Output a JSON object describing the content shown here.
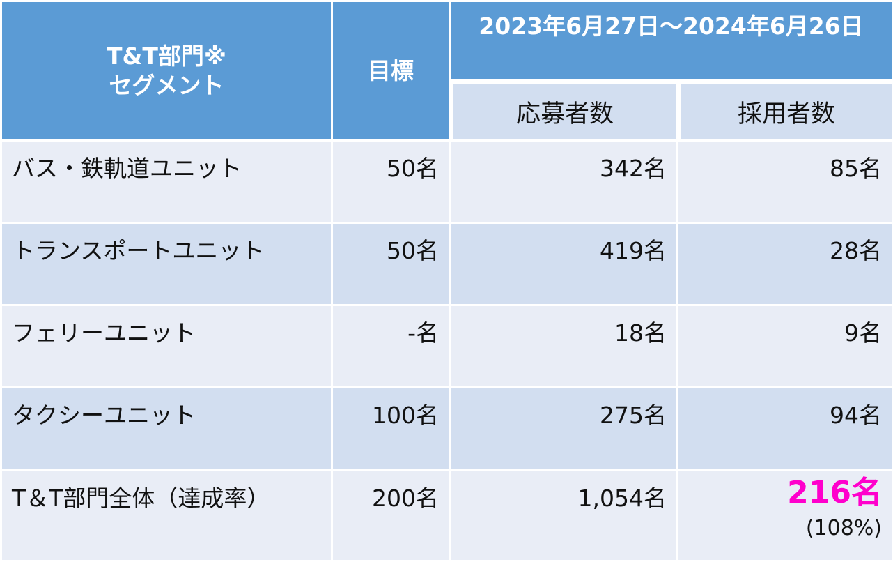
{
  "header": {
    "segment_label_line1": "T&T部門※",
    "segment_label_line2": "セグメント",
    "target_label": "目標",
    "period_label": "2023年6月27日～2024年6月26日",
    "applicants_label": "応募者数",
    "hires_label": "採用者数"
  },
  "rows": [
    {
      "segment": "バス・鉄軌道ユニット",
      "target": "50名",
      "applicants": "342名",
      "hires": "85名"
    },
    {
      "segment": "トランスポートユニット",
      "target": "50名",
      "applicants": "419名",
      "hires": "28名"
    },
    {
      "segment": "フェリーユニット",
      "target": "-名",
      "applicants": "18名",
      "hires": "9名"
    },
    {
      "segment": "タクシーユニット",
      "target": "100名",
      "applicants": "275名",
      "hires": "94名"
    }
  ],
  "total": {
    "segment": "T＆T部門全体（達成率）",
    "target": "200名",
    "applicants": "1,054名",
    "hires": "216名",
    "achievement_rate": "(108%)"
  },
  "colors": {
    "header_blue": "#5b9bd5",
    "row_light": "#e9edf6",
    "row_dark": "#d2def0",
    "highlight_magenta": "#ff00cc"
  }
}
